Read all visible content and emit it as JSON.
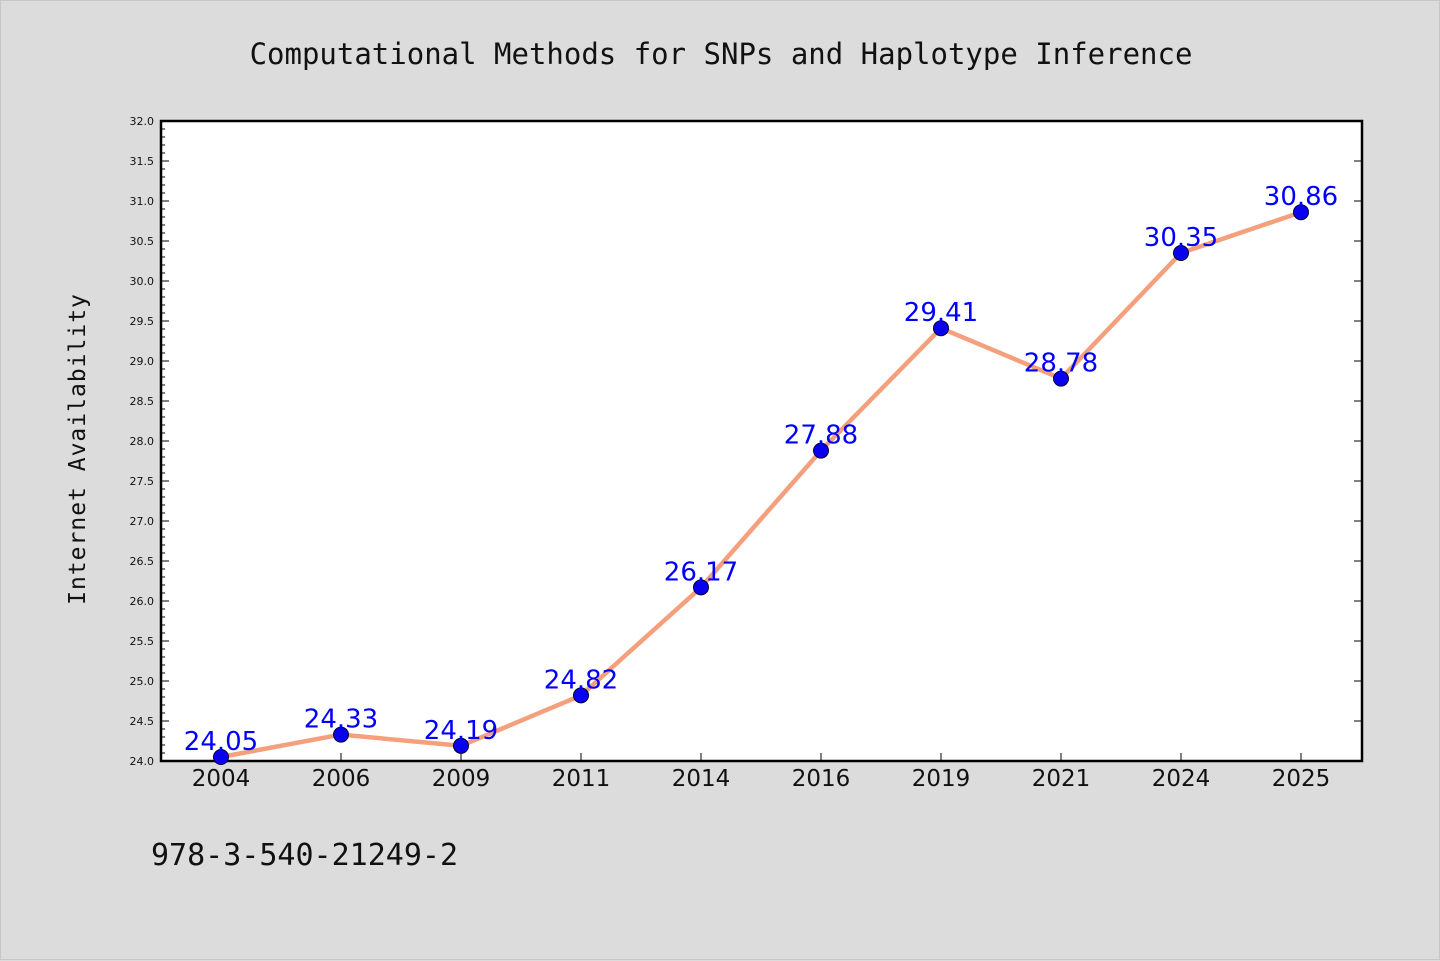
{
  "chart_data": {
    "type": "line",
    "title": "Computational Methods for SNPs and Haplotype Inference",
    "xlabel": "",
    "ylabel": "Internet Availability",
    "categories": [
      "2004",
      "2006",
      "2009",
      "2011",
      "2014",
      "2016",
      "2019",
      "2021",
      "2024",
      "2025"
    ],
    "series": [
      {
        "values": [
          24.05,
          24.33,
          24.19,
          24.82,
          26.17,
          27.88,
          29.41,
          28.78,
          30.35,
          30.86
        ]
      }
    ],
    "data_labels": [
      "24.05",
      "24.33",
      "24.19",
      "24.82",
      "26.17",
      "27.88",
      "29.41",
      "28.78",
      "30.35",
      "30.86"
    ],
    "ylim": [
      24.0,
      32.0
    ],
    "yticks": [
      "24.0",
      "24.5",
      "25.0",
      "25.5",
      "26.0",
      "26.5",
      "27.0",
      "27.5",
      "28.0",
      "28.5",
      "29.0",
      "29.5",
      "30.0",
      "30.5",
      "31.0",
      "31.5",
      "32.0"
    ],
    "grid": false,
    "colors": {
      "line": "#f4a07c",
      "marker": "#0a00f0",
      "label": "#0000ff",
      "background": "#dcdcdc",
      "plot": "#ffffff"
    }
  },
  "footer": {
    "text": "978-3-540-21249-2"
  }
}
